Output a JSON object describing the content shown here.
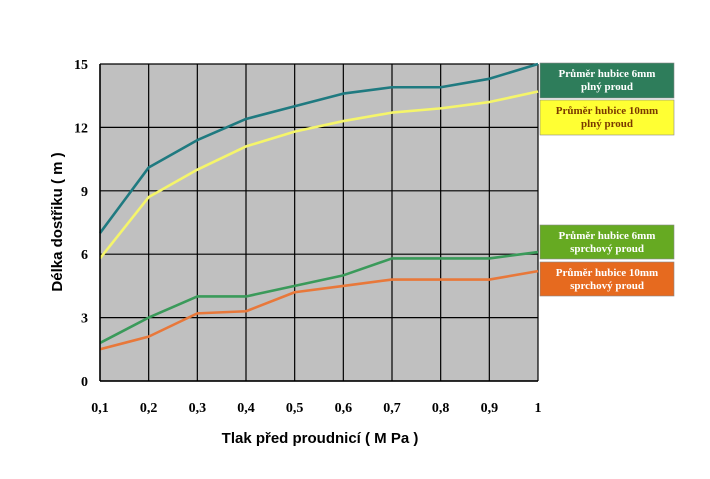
{
  "chart_data": {
    "type": "line",
    "title": "",
    "xlabel": "Tlak před proudnicí  ( M Pa )",
    "ylabel": "Délka dostřiku ( m )",
    "x": [
      0.1,
      0.2,
      0.3,
      0.4,
      0.5,
      0.6,
      0.7,
      0.8,
      0.9,
      1.0
    ],
    "x_tick_labels": [
      "0,1",
      "0,2",
      "0,3",
      "0,4",
      "0,5",
      "0,6",
      "0,7",
      "0,8",
      "0,9",
      "1"
    ],
    "y_ticks": [
      0,
      3,
      6,
      9,
      12,
      15
    ],
    "y_tick_labels": [
      "0",
      "3",
      "6",
      "9",
      "12",
      "15"
    ],
    "xlim": [
      0.1,
      1.0
    ],
    "ylim": [
      0,
      15
    ],
    "grid": true,
    "plot_background": "#c0c0c0",
    "legend_position": "right",
    "series": [
      {
        "name": "Průměr hubice 6mm plný proud",
        "legend_lines": [
          "Průměr hubice 6mm",
          "plný proud"
        ],
        "color": "#1f7a80",
        "legend_bg": "#2e7d5b",
        "legend_fg": "#ffffff",
        "values": [
          7.0,
          10.1,
          11.4,
          12.4,
          13.0,
          13.6,
          13.9,
          13.9,
          14.3,
          15.0
        ]
      },
      {
        "name": "Průměr hubice 10mm plný proud",
        "legend_lines": [
          "Průměr hubice 10mm",
          "plný proud"
        ],
        "color": "#f5f56a",
        "legend_bg": "#ffff33",
        "legend_fg": "#7a3a00",
        "values": [
          5.8,
          8.7,
          10.0,
          11.1,
          11.8,
          12.3,
          12.7,
          12.9,
          13.2,
          13.7
        ]
      },
      {
        "name": "Průměr hubice 6mm sprchový proud",
        "legend_lines": [
          "Průměr hubice 6mm",
          "sprchový proud"
        ],
        "color": "#3a9a5a",
        "legend_bg": "#66aa22",
        "legend_fg": "#ffffff",
        "values": [
          1.8,
          3.0,
          4.0,
          4.0,
          4.5,
          5.0,
          5.8,
          5.8,
          5.8,
          6.1
        ]
      },
      {
        "name": "Průměr hubice 10mm sprchový proud",
        "legend_lines": [
          "Průměr hubice 10mm",
          "sprchový proud"
        ],
        "color": "#e8783a",
        "legend_bg": "#e66a1f",
        "legend_fg": "#ffffff",
        "values": [
          1.5,
          2.1,
          3.2,
          3.3,
          4.2,
          4.5,
          4.8,
          4.8,
          4.8,
          5.2
        ]
      }
    ]
  }
}
